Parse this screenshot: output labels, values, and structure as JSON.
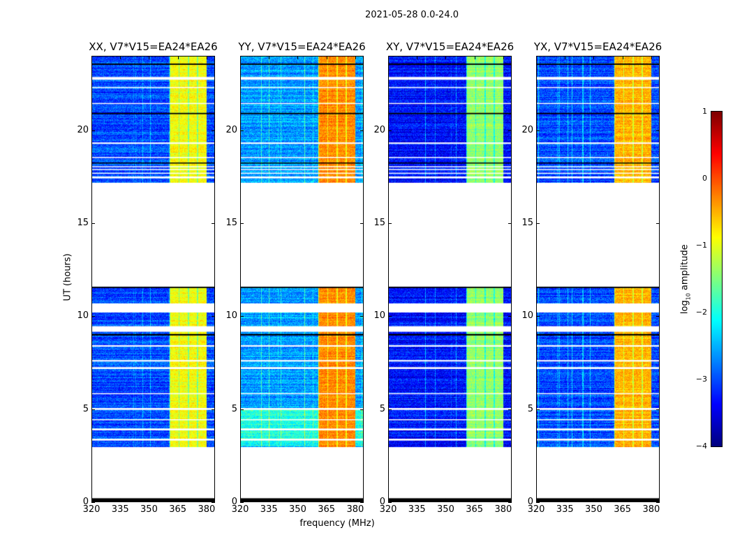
{
  "chart_data": {
    "type": "heatmap",
    "title": "2021-05-28 0.0-24.0",
    "xlabel": "frequency (MHz)",
    "ylabel": "UT (hours)",
    "xlim": [
      320,
      384.4
    ],
    "ylim": [
      0,
      24
    ],
    "xticks": [
      "320",
      "335",
      "350",
      "365",
      "380"
    ],
    "xtick_values": [
      320,
      335,
      350,
      365,
      380
    ],
    "yticks": [
      "0",
      "5",
      "10",
      "15",
      "20"
    ],
    "ytick_values": [
      0,
      5,
      10,
      15,
      20
    ],
    "panels": [
      {
        "title": "XX, V7*V15=EA24*EA26",
        "base_level": -3.0,
        "band_level": -0.9
      },
      {
        "title": "YY, V7*V15=EA24*EA26",
        "base_level": -2.6,
        "band_level": -0.3
      },
      {
        "title": "XY, V7*V15=EA24*EA26",
        "base_level": -3.3,
        "band_level": -1.4
      },
      {
        "title": "YX, V7*V15=EA24*EA26",
        "base_level": -3.0,
        "band_level": -0.5
      }
    ],
    "bright_band_mhz": [
      360.7,
      380.2
    ],
    "data_segments_hours": [
      [
        2.95,
        10.2
      ],
      [
        10.7,
        11.6
      ],
      [
        17.2,
        24.0
      ]
    ],
    "white_gaps_hours": [
      [
        3.35,
        3.45
      ],
      [
        3.9,
        4.0
      ],
      [
        4.45,
        4.5
      ],
      [
        5.0,
        5.1
      ],
      [
        5.85,
        5.9
      ],
      [
        7.2,
        7.3
      ],
      [
        7.6,
        7.68
      ],
      [
        8.4,
        8.48
      ],
      [
        9.2,
        9.5
      ],
      [
        17.45,
        17.55
      ],
      [
        17.7,
        17.75
      ],
      [
        17.9,
        17.95
      ],
      [
        18.05,
        18.1
      ],
      [
        18.55,
        18.6
      ],
      [
        19.3,
        19.38
      ],
      [
        21.45,
        21.5
      ],
      [
        22.3,
        22.36
      ],
      [
        22.75,
        22.9
      ]
    ],
    "black_lines_hours": [
      [
        0.0,
        0.25
      ],
      [
        9.0,
        9.08
      ],
      [
        11.55,
        11.62
      ],
      [
        18.25,
        18.3
      ],
      [
        20.9,
        20.97
      ],
      [
        23.55,
        23.62
      ]
    ],
    "colorbar": {
      "label_prefix": "log",
      "label_sub": "10",
      "label_suffix": " amplitude",
      "range": [
        -4,
        1
      ],
      "ticks": [
        "−4",
        "−3",
        "−2",
        "−1",
        "0",
        "1"
      ],
      "tick_values": [
        -4,
        -3,
        -2,
        -1,
        0,
        1
      ]
    }
  }
}
